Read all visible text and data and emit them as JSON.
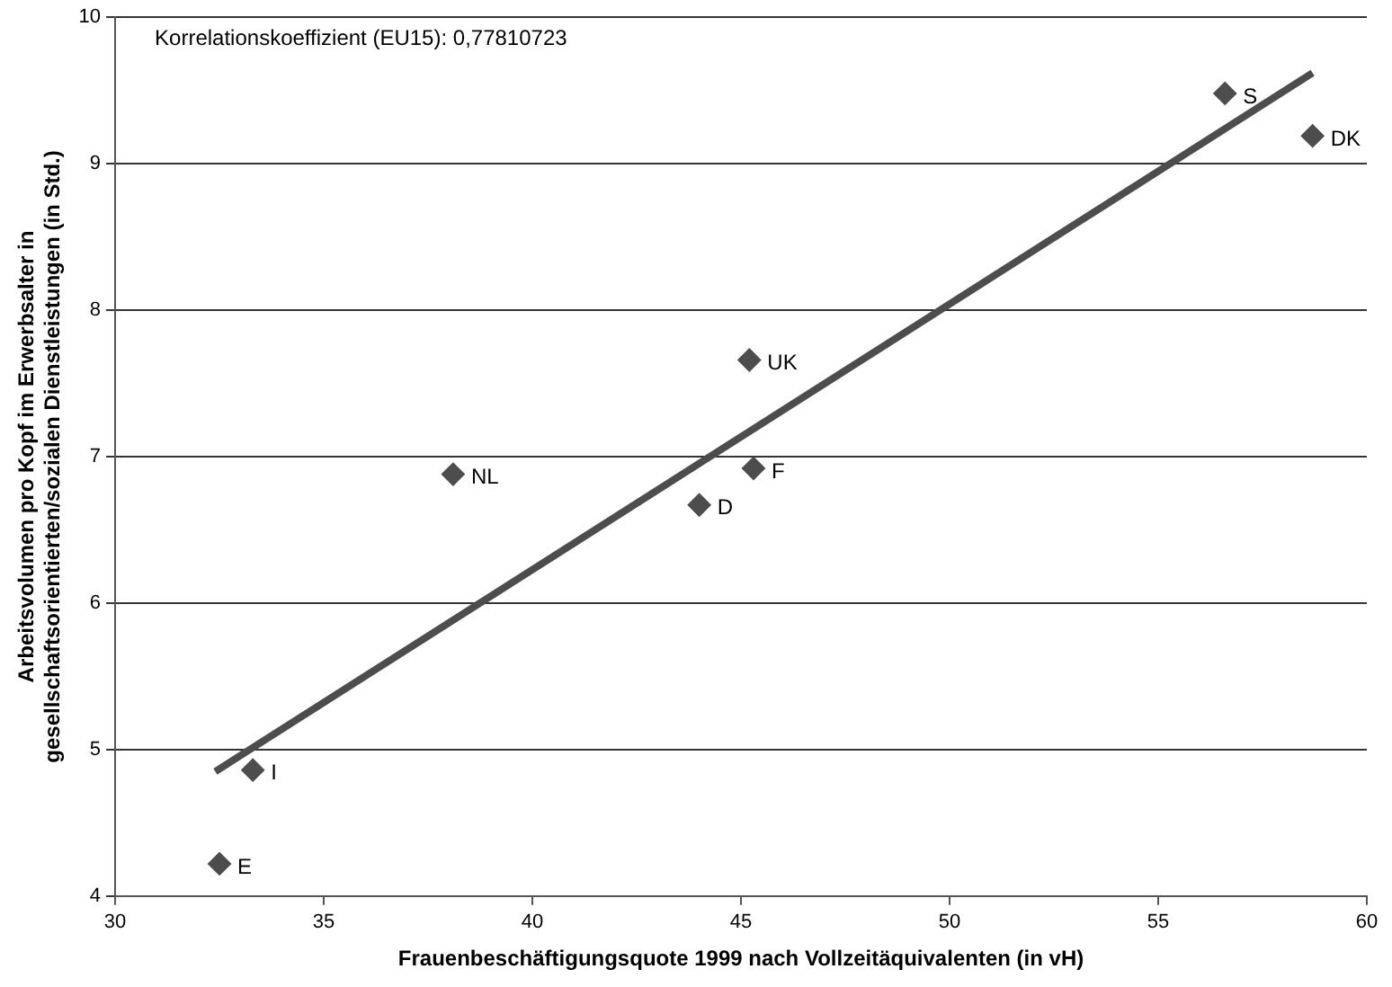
{
  "chart_data": {
    "type": "scatter",
    "xlabel": "Frauenbeschäftigungsquote 1999 nach Vollzeitäquivalenten (in vH)",
    "ylabel": "Arbeitsvolumen pro Kopf im Erwerbsalter in\ngesellschaftsorientierten/sozialen Dienstleistungen (in Std.)",
    "xlim": [
      30,
      60
    ],
    "xticks": [
      30,
      35,
      40,
      45,
      50,
      55,
      60
    ],
    "ylim": [
      4,
      10
    ],
    "yticks": [
      4,
      5,
      6,
      7,
      8,
      9,
      10
    ],
    "grid": "y",
    "legend": false,
    "series": [
      {
        "marker": "diamond",
        "color": "#4d4d4d",
        "x": [
          56.6,
          58.7,
          45.2,
          38.1,
          45.3,
          44.0,
          33.3,
          32.5
        ],
        "values": [
          9.48,
          9.19,
          7.66,
          6.88,
          6.92,
          6.67,
          4.86,
          4.22
        ]
      },
      {
        "type": "line",
        "color": "#4d4d4d",
        "x": [
          32.4,
          58.7
        ],
        "values": [
          4.85,
          9.62
        ]
      }
    ],
    "annotations": [
      "Korrelationskoeffizient (EU15): 0,77810723",
      {
        "text": "S",
        "x": 56.6,
        "y": 9.48
      },
      {
        "text": "DK",
        "x": 58.7,
        "y": 9.19
      },
      {
        "text": "UK",
        "x": 45.2,
        "y": 7.66
      },
      {
        "text": "NL",
        "x": 38.1,
        "y": 6.88
      },
      {
        "text": "F",
        "x": 45.3,
        "y": 6.92
      },
      {
        "text": "D",
        "x": 44.0,
        "y": 6.67
      },
      {
        "text": "I",
        "x": 33.3,
        "y": 4.86
      },
      {
        "text": "E",
        "x": 32.5,
        "y": 4.22
      }
    ]
  }
}
